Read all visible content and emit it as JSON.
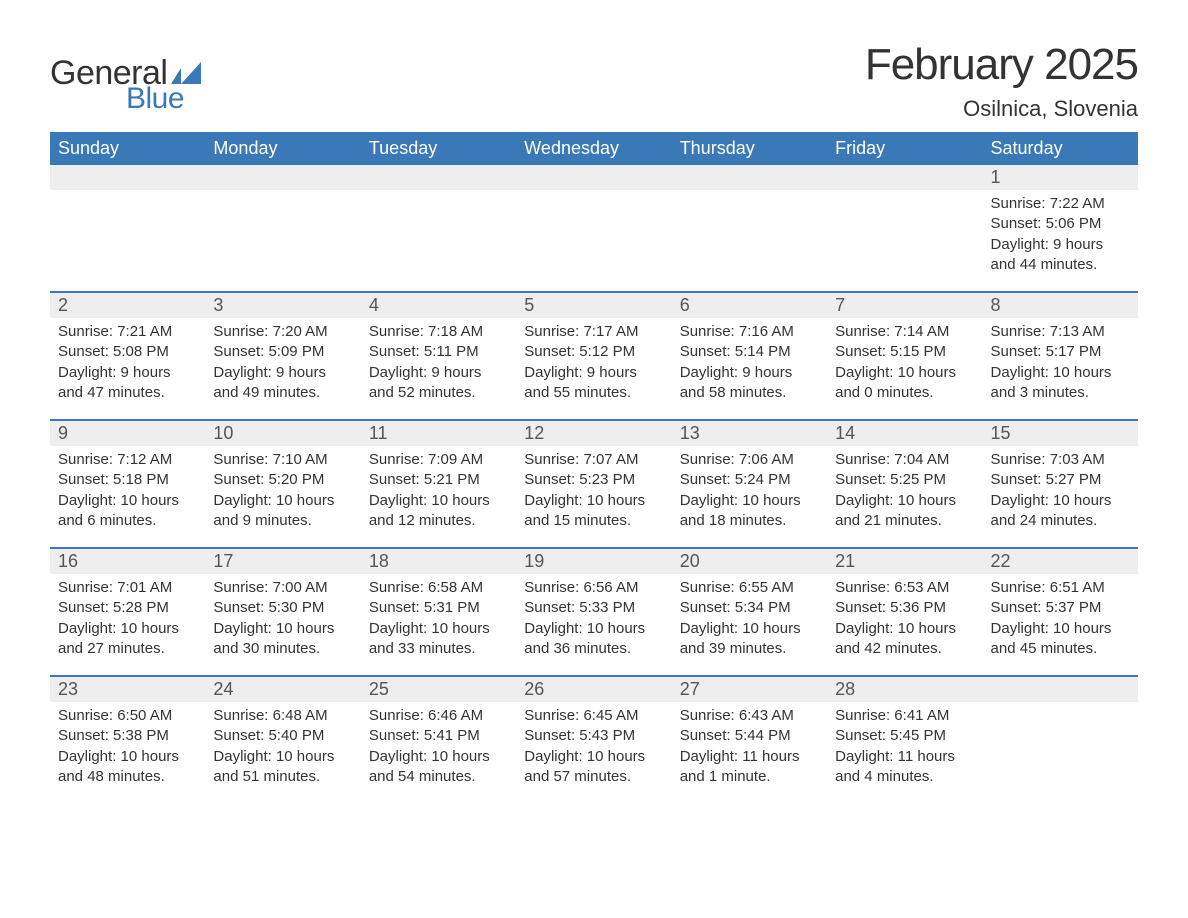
{
  "logo": {
    "text1": "General",
    "text2": "Blue",
    "shape_color": "#3a78b8"
  },
  "title": "February 2025",
  "location": "Osilnica, Slovenia",
  "colors": {
    "header_bg": "#3a78b8",
    "header_text": "#ffffff",
    "daynum_bg": "#eeeeee",
    "row_border": "#3a78b8",
    "body_text": "#333333",
    "daynum_text": "#555555",
    "page_bg": "#ffffff"
  },
  "typography": {
    "title_fontsize": 44,
    "location_fontsize": 22,
    "weekday_fontsize": 18,
    "daynum_fontsize": 18,
    "detail_fontsize": 15
  },
  "weekdays": [
    "Sunday",
    "Monday",
    "Tuesday",
    "Wednesday",
    "Thursday",
    "Friday",
    "Saturday"
  ],
  "weeks": [
    {
      "days": [
        {
          "num": "",
          "sunrise": "",
          "sunset": "",
          "daylight1": "",
          "daylight2": ""
        },
        {
          "num": "",
          "sunrise": "",
          "sunset": "",
          "daylight1": "",
          "daylight2": ""
        },
        {
          "num": "",
          "sunrise": "",
          "sunset": "",
          "daylight1": "",
          "daylight2": ""
        },
        {
          "num": "",
          "sunrise": "",
          "sunset": "",
          "daylight1": "",
          "daylight2": ""
        },
        {
          "num": "",
          "sunrise": "",
          "sunset": "",
          "daylight1": "",
          "daylight2": ""
        },
        {
          "num": "",
          "sunrise": "",
          "sunset": "",
          "daylight1": "",
          "daylight2": ""
        },
        {
          "num": "1",
          "sunrise": "Sunrise: 7:22 AM",
          "sunset": "Sunset: 5:06 PM",
          "daylight1": "Daylight: 9 hours",
          "daylight2": "and 44 minutes."
        }
      ]
    },
    {
      "days": [
        {
          "num": "2",
          "sunrise": "Sunrise: 7:21 AM",
          "sunset": "Sunset: 5:08 PM",
          "daylight1": "Daylight: 9 hours",
          "daylight2": "and 47 minutes."
        },
        {
          "num": "3",
          "sunrise": "Sunrise: 7:20 AM",
          "sunset": "Sunset: 5:09 PM",
          "daylight1": "Daylight: 9 hours",
          "daylight2": "and 49 minutes."
        },
        {
          "num": "4",
          "sunrise": "Sunrise: 7:18 AM",
          "sunset": "Sunset: 5:11 PM",
          "daylight1": "Daylight: 9 hours",
          "daylight2": "and 52 minutes."
        },
        {
          "num": "5",
          "sunrise": "Sunrise: 7:17 AM",
          "sunset": "Sunset: 5:12 PM",
          "daylight1": "Daylight: 9 hours",
          "daylight2": "and 55 minutes."
        },
        {
          "num": "6",
          "sunrise": "Sunrise: 7:16 AM",
          "sunset": "Sunset: 5:14 PM",
          "daylight1": "Daylight: 9 hours",
          "daylight2": "and 58 minutes."
        },
        {
          "num": "7",
          "sunrise": "Sunrise: 7:14 AM",
          "sunset": "Sunset: 5:15 PM",
          "daylight1": "Daylight: 10 hours",
          "daylight2": "and 0 minutes."
        },
        {
          "num": "8",
          "sunrise": "Sunrise: 7:13 AM",
          "sunset": "Sunset: 5:17 PM",
          "daylight1": "Daylight: 10 hours",
          "daylight2": "and 3 minutes."
        }
      ]
    },
    {
      "days": [
        {
          "num": "9",
          "sunrise": "Sunrise: 7:12 AM",
          "sunset": "Sunset: 5:18 PM",
          "daylight1": "Daylight: 10 hours",
          "daylight2": "and 6 minutes."
        },
        {
          "num": "10",
          "sunrise": "Sunrise: 7:10 AM",
          "sunset": "Sunset: 5:20 PM",
          "daylight1": "Daylight: 10 hours",
          "daylight2": "and 9 minutes."
        },
        {
          "num": "11",
          "sunrise": "Sunrise: 7:09 AM",
          "sunset": "Sunset: 5:21 PM",
          "daylight1": "Daylight: 10 hours",
          "daylight2": "and 12 minutes."
        },
        {
          "num": "12",
          "sunrise": "Sunrise: 7:07 AM",
          "sunset": "Sunset: 5:23 PM",
          "daylight1": "Daylight: 10 hours",
          "daylight2": "and 15 minutes."
        },
        {
          "num": "13",
          "sunrise": "Sunrise: 7:06 AM",
          "sunset": "Sunset: 5:24 PM",
          "daylight1": "Daylight: 10 hours",
          "daylight2": "and 18 minutes."
        },
        {
          "num": "14",
          "sunrise": "Sunrise: 7:04 AM",
          "sunset": "Sunset: 5:25 PM",
          "daylight1": "Daylight: 10 hours",
          "daylight2": "and 21 minutes."
        },
        {
          "num": "15",
          "sunrise": "Sunrise: 7:03 AM",
          "sunset": "Sunset: 5:27 PM",
          "daylight1": "Daylight: 10 hours",
          "daylight2": "and 24 minutes."
        }
      ]
    },
    {
      "days": [
        {
          "num": "16",
          "sunrise": "Sunrise: 7:01 AM",
          "sunset": "Sunset: 5:28 PM",
          "daylight1": "Daylight: 10 hours",
          "daylight2": "and 27 minutes."
        },
        {
          "num": "17",
          "sunrise": "Sunrise: 7:00 AM",
          "sunset": "Sunset: 5:30 PM",
          "daylight1": "Daylight: 10 hours",
          "daylight2": "and 30 minutes."
        },
        {
          "num": "18",
          "sunrise": "Sunrise: 6:58 AM",
          "sunset": "Sunset: 5:31 PM",
          "daylight1": "Daylight: 10 hours",
          "daylight2": "and 33 minutes."
        },
        {
          "num": "19",
          "sunrise": "Sunrise: 6:56 AM",
          "sunset": "Sunset: 5:33 PM",
          "daylight1": "Daylight: 10 hours",
          "daylight2": "and 36 minutes."
        },
        {
          "num": "20",
          "sunrise": "Sunrise: 6:55 AM",
          "sunset": "Sunset: 5:34 PM",
          "daylight1": "Daylight: 10 hours",
          "daylight2": "and 39 minutes."
        },
        {
          "num": "21",
          "sunrise": "Sunrise: 6:53 AM",
          "sunset": "Sunset: 5:36 PM",
          "daylight1": "Daylight: 10 hours",
          "daylight2": "and 42 minutes."
        },
        {
          "num": "22",
          "sunrise": "Sunrise: 6:51 AM",
          "sunset": "Sunset: 5:37 PM",
          "daylight1": "Daylight: 10 hours",
          "daylight2": "and 45 minutes."
        }
      ]
    },
    {
      "days": [
        {
          "num": "23",
          "sunrise": "Sunrise: 6:50 AM",
          "sunset": "Sunset: 5:38 PM",
          "daylight1": "Daylight: 10 hours",
          "daylight2": "and 48 minutes."
        },
        {
          "num": "24",
          "sunrise": "Sunrise: 6:48 AM",
          "sunset": "Sunset: 5:40 PM",
          "daylight1": "Daylight: 10 hours",
          "daylight2": "and 51 minutes."
        },
        {
          "num": "25",
          "sunrise": "Sunrise: 6:46 AM",
          "sunset": "Sunset: 5:41 PM",
          "daylight1": "Daylight: 10 hours",
          "daylight2": "and 54 minutes."
        },
        {
          "num": "26",
          "sunrise": "Sunrise: 6:45 AM",
          "sunset": "Sunset: 5:43 PM",
          "daylight1": "Daylight: 10 hours",
          "daylight2": "and 57 minutes."
        },
        {
          "num": "27",
          "sunrise": "Sunrise: 6:43 AM",
          "sunset": "Sunset: 5:44 PM",
          "daylight1": "Daylight: 11 hours",
          "daylight2": "and 1 minute."
        },
        {
          "num": "28",
          "sunrise": "Sunrise: 6:41 AM",
          "sunset": "Sunset: 5:45 PM",
          "daylight1": "Daylight: 11 hours",
          "daylight2": "and 4 minutes."
        },
        {
          "num": "",
          "sunrise": "",
          "sunset": "",
          "daylight1": "",
          "daylight2": ""
        }
      ]
    }
  ]
}
